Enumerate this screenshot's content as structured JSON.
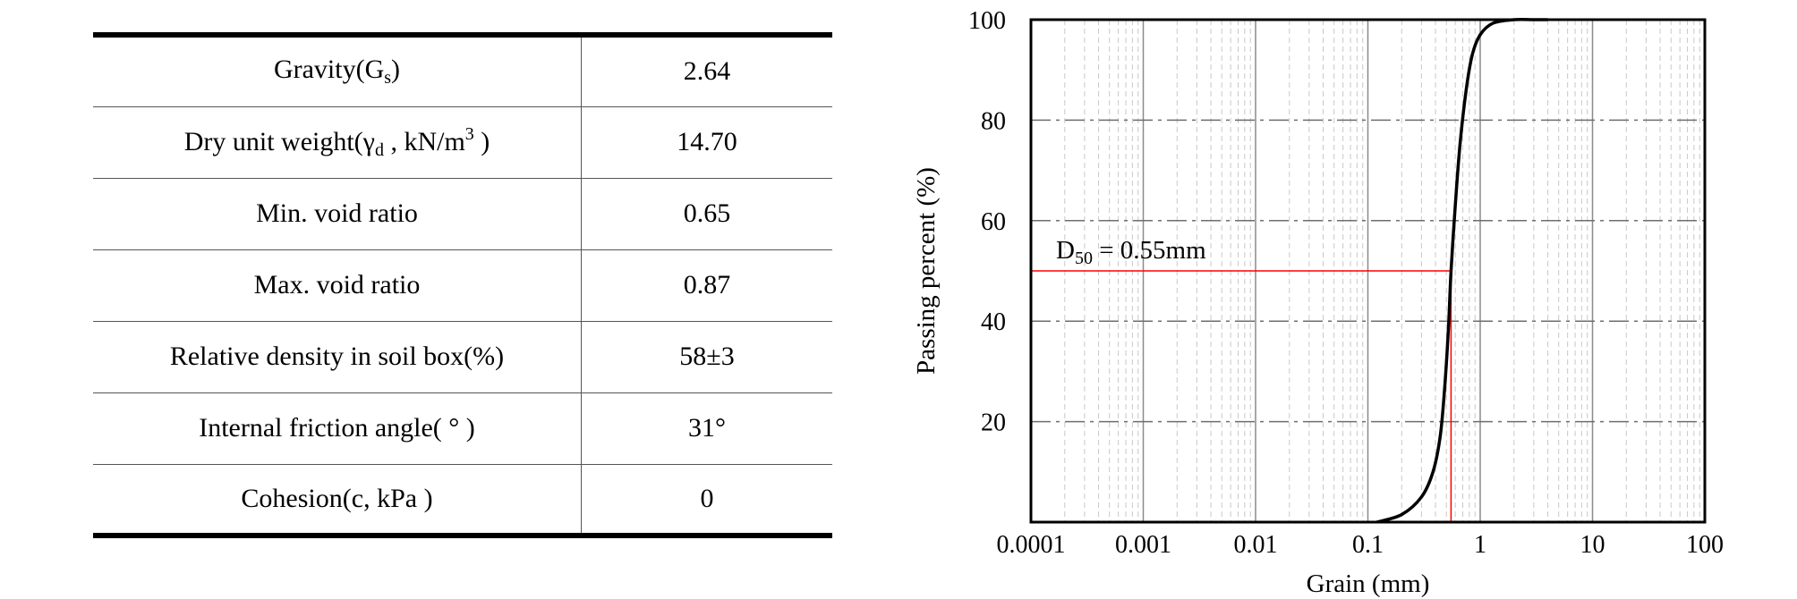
{
  "table": {
    "rows": [
      {
        "name": "Gravity(G",
        "name_sub": "s",
        "name_sup": "",
        "name_tail": ")",
        "value": "2.64"
      },
      {
        "name": "Dry unit weight(γ",
        "name_sub": "d",
        "name_sup": "3",
        "name_mid": " , kN/m",
        "name_tail": " )",
        "value": "14.70"
      },
      {
        "name": "Min. void ratio",
        "value": "0.65"
      },
      {
        "name": "Max. void ratio",
        "value": "0.87"
      },
      {
        "name": "Relative density in soil box(%)",
        "value": "58±3"
      },
      {
        "name": "Internal friction angle( ° )",
        "value": "31°"
      },
      {
        "name": "Cohesion(c, kPa )",
        "value": "0"
      }
    ]
  },
  "chart_data": {
    "type": "line",
    "xlabel": "Grain (mm)",
    "ylabel": "Passing percent (%)",
    "x_scale": "log",
    "xlim": [
      0.0001,
      100
    ],
    "ylim": [
      0,
      100
    ],
    "x_ticks": [
      "0.0001",
      "0.001",
      "0.01",
      "0.1",
      "1",
      "10",
      "100"
    ],
    "y_ticks": [
      "20",
      "40",
      "60",
      "80",
      "100"
    ],
    "grid": true,
    "annotation": {
      "label": "D",
      "label_sub": "50",
      "label_rest": " = 0.55mm",
      "x": 0.55,
      "y": 50,
      "color": "#ff0000"
    },
    "series": [
      {
        "x": [
          0.12,
          0.2,
          0.3,
          0.38,
          0.44,
          0.48,
          0.52,
          0.55,
          0.6,
          0.66,
          0.75,
          0.85,
          1.0,
          1.3,
          2.0,
          3.0,
          4.0
        ],
        "y": [
          0,
          1.5,
          5,
          10,
          17,
          26,
          38,
          50,
          63,
          75,
          86,
          93,
          97,
          99.3,
          100,
          100,
          100
        ],
        "color": "#000000"
      }
    ]
  }
}
